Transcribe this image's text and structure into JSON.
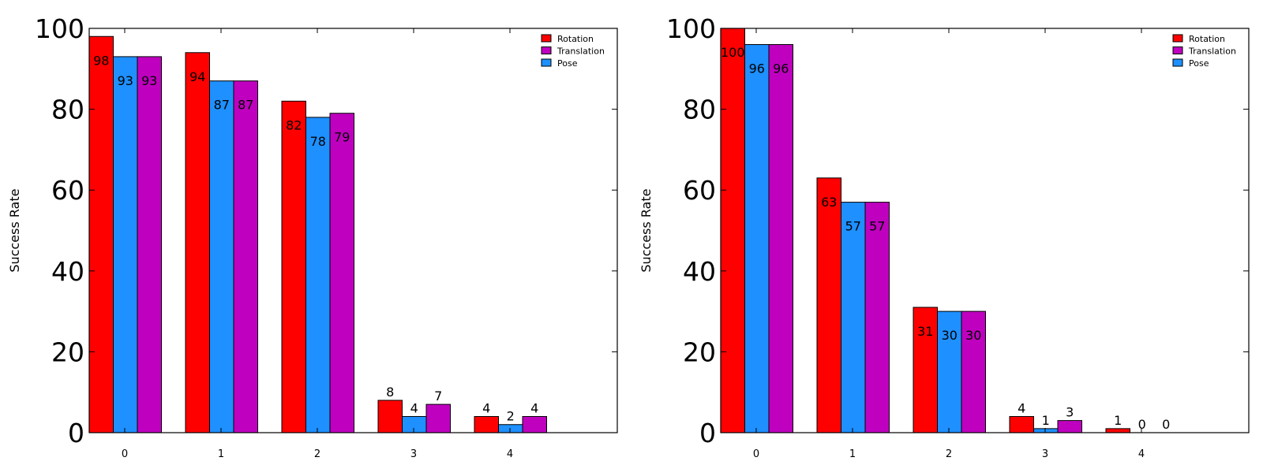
{
  "colors": {
    "red": "#ff0000",
    "blue": "#1e90ff",
    "magenta": "#bf00bf",
    "axis": "#000000",
    "background": "#ffffff"
  },
  "chart_data": [
    {
      "type": "bar",
      "title": "",
      "xlabel": "",
      "ylabel": "Success Rate",
      "categories": [
        "0",
        "1",
        "2",
        "3",
        "4"
      ],
      "ylim": [
        0,
        100
      ],
      "yticks": [
        0,
        20,
        40,
        60,
        80,
        100
      ],
      "legend_position": "top-right",
      "legend": [
        {
          "name": "Rotation",
          "color": "#ff0000"
        },
        {
          "name": "Translation",
          "color": "#bf00bf"
        },
        {
          "name": "Pose",
          "color": "#1e90ff"
        }
      ],
      "series": [
        {
          "name": "Rotation",
          "color": "#ff0000",
          "values": [
            98,
            94,
            82,
            8,
            4
          ],
          "labels": [
            "98",
            "94",
            "82",
            "8",
            "4"
          ]
        },
        {
          "name": "Pose",
          "color": "#1e90ff",
          "values": [
            93,
            87,
            78,
            4,
            2
          ],
          "labels": [
            "93",
            "87",
            "78",
            "4",
            "2"
          ]
        },
        {
          "name": "Translation",
          "color": "#bf00bf",
          "values": [
            93,
            87,
            79,
            7,
            4
          ],
          "labels": [
            "93",
            "87",
            "79",
            "7",
            "4"
          ]
        }
      ]
    },
    {
      "type": "bar",
      "title": "",
      "xlabel": "",
      "ylabel": "Success Rate",
      "categories": [
        "0",
        "1",
        "2",
        "3",
        "4"
      ],
      "ylim": [
        0,
        100
      ],
      "yticks": [
        0,
        20,
        40,
        60,
        80,
        100
      ],
      "legend_position": "top-right",
      "legend": [
        {
          "name": "Rotation",
          "color": "#ff0000"
        },
        {
          "name": "Translation",
          "color": "#bf00bf"
        },
        {
          "name": "Pose",
          "color": "#1e90ff"
        }
      ],
      "series": [
        {
          "name": "Rotation",
          "color": "#ff0000",
          "values": [
            100,
            63,
            31,
            4,
            1
          ],
          "labels": [
            "100",
            "63",
            "31",
            "4",
            "1"
          ]
        },
        {
          "name": "Pose",
          "color": "#1e90ff",
          "values": [
            96,
            57,
            30,
            1,
            0
          ],
          "labels": [
            "96",
            "57",
            "30",
            "1",
            "0"
          ]
        },
        {
          "name": "Translation",
          "color": "#bf00bf",
          "values": [
            96,
            57,
            30,
            3,
            0
          ],
          "labels": [
            "96",
            "57",
            "30",
            "3",
            "0"
          ]
        }
      ]
    }
  ]
}
